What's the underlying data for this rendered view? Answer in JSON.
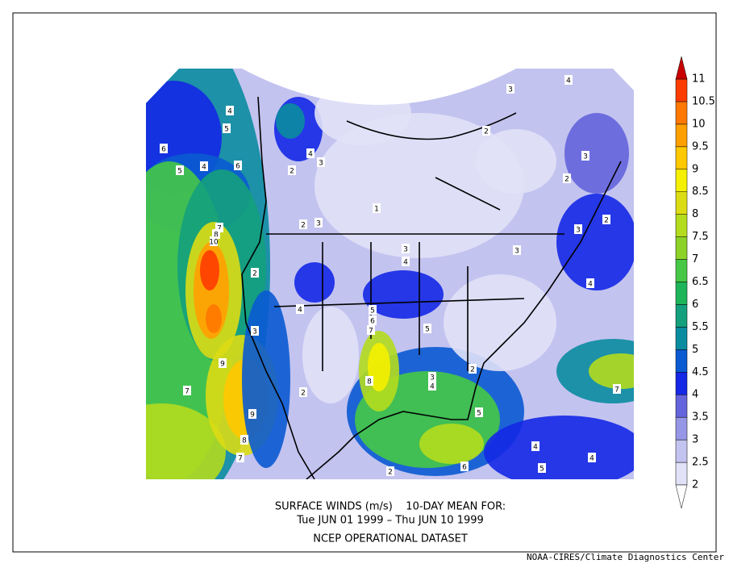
{
  "caption": {
    "line1": "SURFACE WINDS (m/s)    10-DAY MEAN FOR:",
    "line2": "Tue JUN 01 1999 – Thu JUN 10 1999",
    "line3": "NCEP OPERATIONAL DATASET"
  },
  "credit": "NOAA-CIRES/Climate Diagnostics Center",
  "map": {
    "contour_labels": [
      4,
      5,
      6,
      5,
      4,
      6,
      4,
      3,
      2,
      7,
      8,
      10,
      2,
      4,
      3,
      2,
      3,
      9,
      7,
      9,
      8,
      7,
      2,
      5,
      6,
      7,
      8,
      3,
      4,
      5,
      3,
      4,
      5,
      6,
      2,
      4,
      5,
      4,
      7,
      4,
      3,
      2,
      3,
      2,
      3,
      2,
      3,
      4,
      2,
      1
    ],
    "colorbar": {
      "ticks": [
        2,
        2.5,
        3,
        3.5,
        4,
        4.5,
        5,
        5.5,
        6,
        6.5,
        7,
        7.5,
        8,
        8.5,
        9,
        9.5,
        10,
        10.5,
        11
      ],
      "interval_colors": [
        "#e1e1f7",
        "#c3c3f0",
        "#9696e6",
        "#6464dc",
        "#1428e6",
        "#0a5ad2",
        "#0a8ca0",
        "#14a07d",
        "#1eb45a",
        "#46c846",
        "#8cd228",
        "#b4dc1e",
        "#dcdc14",
        "#f5f000",
        "#ffc800",
        "#ffa000",
        "#ff7800",
        "#ff3c00"
      ],
      "over_color": "#c80000",
      "under_color": "#ffffff"
    }
  }
}
